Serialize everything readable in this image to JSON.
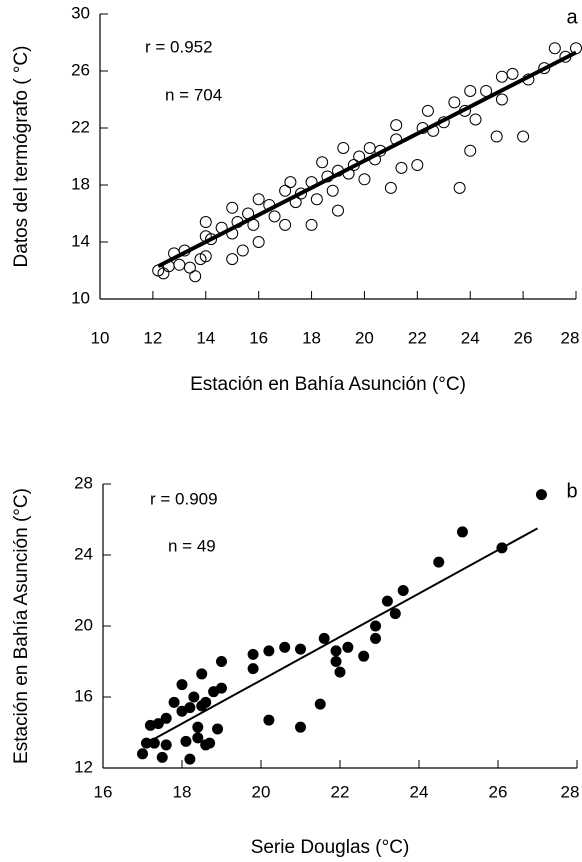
{
  "chart_data": [
    {
      "type": "scatter",
      "panel": "a",
      "xlabel": "Estación en Bahía Asunción (°C)",
      "ylabel": "Datos del termógrafo ( °C)",
      "annotations": [
        "r = 0.952",
        "n = 704"
      ],
      "color": "#000000",
      "marker_fill": false,
      "xlim": [
        10,
        28
      ],
      "ylim": [
        10,
        30
      ],
      "xticks": [
        10,
        12,
        14,
        16,
        18,
        20,
        22,
        24,
        26,
        28
      ],
      "yticks": [
        10,
        14,
        18,
        22,
        26,
        30
      ],
      "series": [
        {
          "x": [
            12.2,
            12.4,
            12.6,
            12.8,
            13.0,
            13.2,
            13.4,
            13.6,
            13.8,
            14.0,
            14.0,
            14.0,
            14.2,
            14.6,
            15.0,
            15.0,
            15.0,
            15.2,
            15.4,
            15.6,
            15.8,
            16.0,
            16.0,
            16.4,
            16.6,
            17.0,
            17.0,
            17.2,
            17.4,
            17.6,
            18.0,
            18.0,
            18.2,
            18.4,
            18.6,
            18.8,
            19.0,
            19.0,
            19.2,
            19.4,
            19.6,
            19.8,
            20.0,
            20.2,
            20.4,
            20.6,
            21.0,
            21.2,
            21.2,
            21.4,
            22.0,
            22.2,
            22.4,
            22.6,
            23.0,
            23.4,
            23.6,
            23.8,
            24.0,
            24.0,
            24.2,
            24.6,
            25.0,
            25.2,
            25.2,
            25.6,
            26.0,
            26.2,
            26.8,
            27.2,
            27.6,
            28.0
          ],
          "y": [
            12.0,
            11.8,
            12.3,
            13.2,
            12.4,
            13.4,
            12.2,
            11.6,
            12.8,
            13.0,
            14.4,
            15.4,
            14.2,
            15.0,
            12.8,
            14.6,
            16.4,
            15.4,
            13.4,
            16.0,
            15.2,
            14.0,
            17.0,
            16.6,
            15.8,
            15.2,
            17.6,
            18.2,
            16.8,
            17.4,
            15.2,
            18.2,
            17.0,
            19.6,
            18.6,
            17.6,
            16.2,
            19.0,
            20.6,
            18.8,
            19.4,
            20.0,
            18.4,
            20.6,
            19.8,
            20.4,
            17.8,
            21.2,
            22.2,
            19.2,
            19.4,
            22.0,
            23.2,
            21.8,
            22.4,
            23.8,
            17.8,
            23.2,
            20.4,
            24.6,
            22.6,
            24.6,
            21.4,
            24.0,
            25.6,
            25.8,
            21.4,
            25.4,
            26.2,
            27.6,
            27.0,
            27.6
          ]
        }
      ],
      "fit": {
        "x": [
          12.2,
          28.0
        ],
        "y": [
          12.3,
          27.3
        ]
      }
    },
    {
      "type": "scatter",
      "panel": "b",
      "xlabel": "Serie Douglas (°C)",
      "ylabel": "Estación en Bahía Asunción (°C)",
      "annotations": [
        "r = 0.909",
        "n = 49"
      ],
      "color": "#000000",
      "marker_fill": true,
      "xlim": [
        16,
        28
      ],
      "ylim": [
        12,
        28
      ],
      "xticks": [
        16,
        18,
        20,
        22,
        24,
        26,
        28
      ],
      "yticks": [
        12,
        16,
        20,
        24,
        28
      ],
      "series": [
        {
          "x": [
            17.0,
            17.1,
            17.2,
            17.3,
            17.4,
            17.5,
            17.6,
            17.6,
            17.8,
            18.0,
            18.0,
            18.1,
            18.2,
            18.2,
            18.3,
            18.4,
            18.4,
            18.5,
            18.5,
            18.6,
            18.6,
            18.7,
            18.8,
            18.9,
            19.0,
            19.0,
            19.8,
            19.8,
            20.2,
            20.2,
            20.6,
            21.0,
            21.0,
            21.5,
            21.6,
            21.9,
            22.0,
            21.9,
            22.2,
            22.6,
            22.9,
            22.9,
            23.2,
            23.4,
            23.6,
            24.5,
            25.1,
            26.1,
            27.1
          ],
          "y": [
            12.8,
            13.4,
            14.4,
            13.4,
            14.5,
            12.6,
            13.3,
            14.8,
            15.7,
            16.7,
            15.2,
            13.5,
            12.5,
            15.4,
            16.0,
            14.3,
            13.7,
            15.5,
            17.3,
            15.7,
            13.3,
            13.4,
            16.3,
            14.2,
            18.0,
            16.5,
            18.4,
            17.6,
            14.7,
            18.6,
            18.8,
            18.7,
            14.3,
            15.6,
            19.3,
            18.0,
            17.4,
            18.6,
            18.8,
            18.3,
            20.0,
            19.3,
            21.4,
            20.7,
            22.0,
            23.6,
            25.3,
            24.4,
            27.4
          ]
        }
      ],
      "fit": {
        "x": [
          17.1,
          27.0
        ],
        "y": [
          13.4,
          25.5
        ]
      }
    }
  ]
}
